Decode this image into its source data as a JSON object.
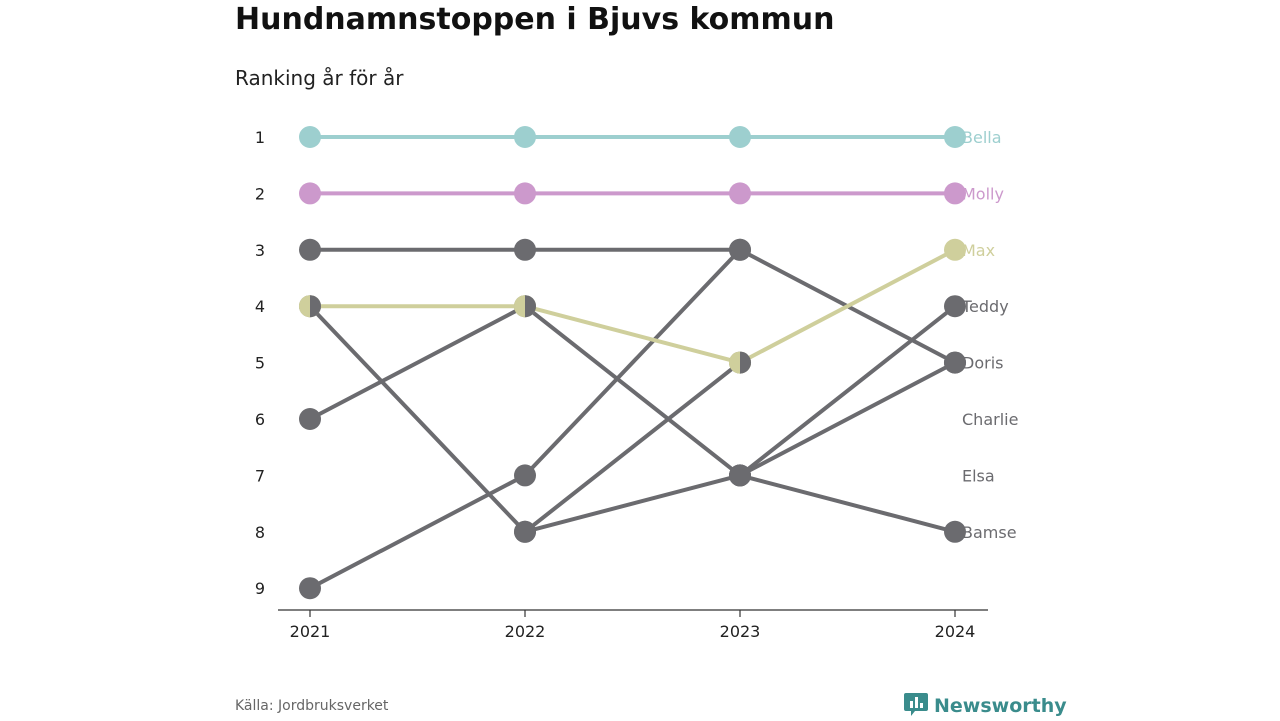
{
  "title": "Hundnamnstoppen i Bjuvs kommun",
  "subtitle": "Ranking år för år",
  "source": "Källa: Jordbruksverket",
  "brand": {
    "name": "Newsworthy",
    "icon": "newsworthy-logo-icon",
    "color": "#3a8c8c"
  },
  "chart_data": {
    "type": "line",
    "subtype": "bump",
    "x": [
      "2021",
      "2022",
      "2023",
      "2024"
    ],
    "y_ticks": [
      1,
      2,
      3,
      4,
      5,
      6,
      7,
      8,
      9
    ],
    "ylim": [
      1,
      9
    ],
    "y_inverted": true,
    "grid": false,
    "series": [
      {
        "name": "Bella",
        "values": [
          1,
          1,
          1,
          1
        ],
        "color": "#9dcfcf",
        "highlight": true
      },
      {
        "name": "Molly",
        "values": [
          2,
          2,
          2,
          2
        ],
        "color": "#cc99cc",
        "highlight": true
      },
      {
        "name": "Max",
        "values": [
          4,
          4,
          5,
          3
        ],
        "color": "#cfcf9c",
        "highlight": true
      },
      {
        "name": "Teddy",
        "values": [
          6,
          4,
          7,
          4
        ],
        "color": "#6b6b6f",
        "highlight": false
      },
      {
        "name": "Doris",
        "values": [
          3,
          3,
          3,
          5
        ],
        "color": "#6b6b6f",
        "highlight": false
      },
      {
        "name": "Charlie",
        "values": [
          9,
          7,
          3,
          null
        ],
        "color": "#6b6b6f",
        "highlight": false
      },
      {
        "name": "Elsa",
        "values": [
          null,
          8,
          5,
          null
        ],
        "color": "#6b6b6f",
        "highlight": false
      },
      {
        "name": "Bamse",
        "values": [
          4,
          8,
          7,
          8
        ],
        "color": "#6b6b6f",
        "highlight": false
      },
      {
        "name": "",
        "values": [
          null,
          null,
          7,
          5
        ],
        "color": "#6b6b6f",
        "highlight": false
      }
    ],
    "end_labels": [
      {
        "label": "Bella",
        "rank": 1,
        "color": "#9dcfcf"
      },
      {
        "label": "Molly",
        "rank": 2,
        "color": "#cc99cc"
      },
      {
        "label": "Max",
        "rank": 3,
        "color": "#cfcf9c"
      },
      {
        "label": "Teddy",
        "rank": 4,
        "color": "#6b6b6f"
      },
      {
        "label": "Doris",
        "rank": 5,
        "color": "#6b6b6f"
      },
      {
        "label": "Charlie",
        "rank": 6,
        "color": "#6b6b6f"
      },
      {
        "label": "Elsa",
        "rank": 7,
        "color": "#6b6b6f"
      },
      {
        "label": "Bamse",
        "rank": 8,
        "color": "#6b6b6f"
      }
    ]
  }
}
